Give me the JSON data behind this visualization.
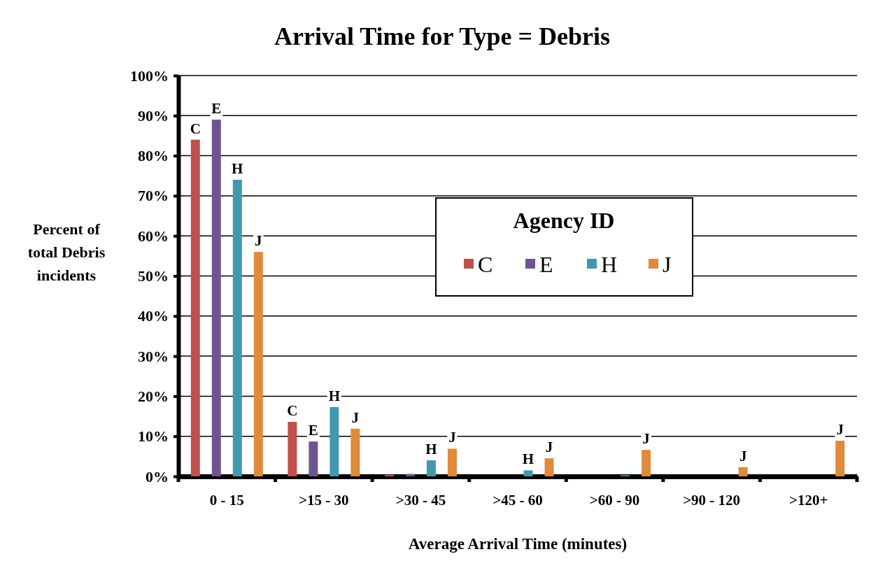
{
  "chart_data": {
    "type": "bar",
    "title": "Arrival Time for Type = Debris",
    "xlabel": "Average Arrival Time (minutes)",
    "ylabel": "Percent of total Debris incidents",
    "legend_title": "Agency ID",
    "categories": [
      "0 - 15",
      ">15 - 30",
      ">30 - 45",
      ">45 - 60",
      ">60 - 90",
      ">90 - 120",
      ">120+"
    ],
    "series": [
      {
        "name": "C",
        "color": "#c0504d",
        "values": [
          84,
          13.6,
          0.4,
          0,
          0,
          0,
          0
        ],
        "value_labels": [
          "C",
          "C",
          null,
          null,
          null,
          null,
          null
        ]
      },
      {
        "name": "E",
        "color": "#6f5590",
        "values": [
          89,
          8.7,
          0.6,
          0,
          0,
          0,
          0
        ],
        "value_labels": [
          "E",
          "E",
          null,
          null,
          null,
          null,
          null
        ]
      },
      {
        "name": "H",
        "color": "#4198af",
        "values": [
          74,
          17.3,
          4,
          1.5,
          0.3,
          0,
          0
        ],
        "value_labels": [
          "H",
          "H",
          "H",
          "H",
          null,
          null,
          null
        ]
      },
      {
        "name": "J",
        "color": "#e08a3c",
        "values": [
          56,
          11.9,
          6.9,
          4.5,
          6.6,
          2.3,
          8.9
        ],
        "value_labels": [
          "J",
          "J",
          "J",
          "J",
          "J",
          "J",
          "J"
        ]
      }
    ],
    "ylim": [
      0,
      100
    ],
    "yticks": [
      {
        "value": 0,
        "label": "0%"
      },
      {
        "value": 10,
        "label": "10%"
      },
      {
        "value": 20,
        "label": "20%"
      },
      {
        "value": 30,
        "label": "30%"
      },
      {
        "value": 40,
        "label": "40%"
      },
      {
        "value": 50,
        "label": "50%"
      },
      {
        "value": 60,
        "label": "60%"
      },
      {
        "value": 70,
        "label": "70%"
      },
      {
        "value": 80,
        "label": "80%"
      },
      {
        "value": 90,
        "label": "90%"
      },
      {
        "value": 100,
        "label": "100%"
      }
    ],
    "grid": "y",
    "legend": "center"
  }
}
